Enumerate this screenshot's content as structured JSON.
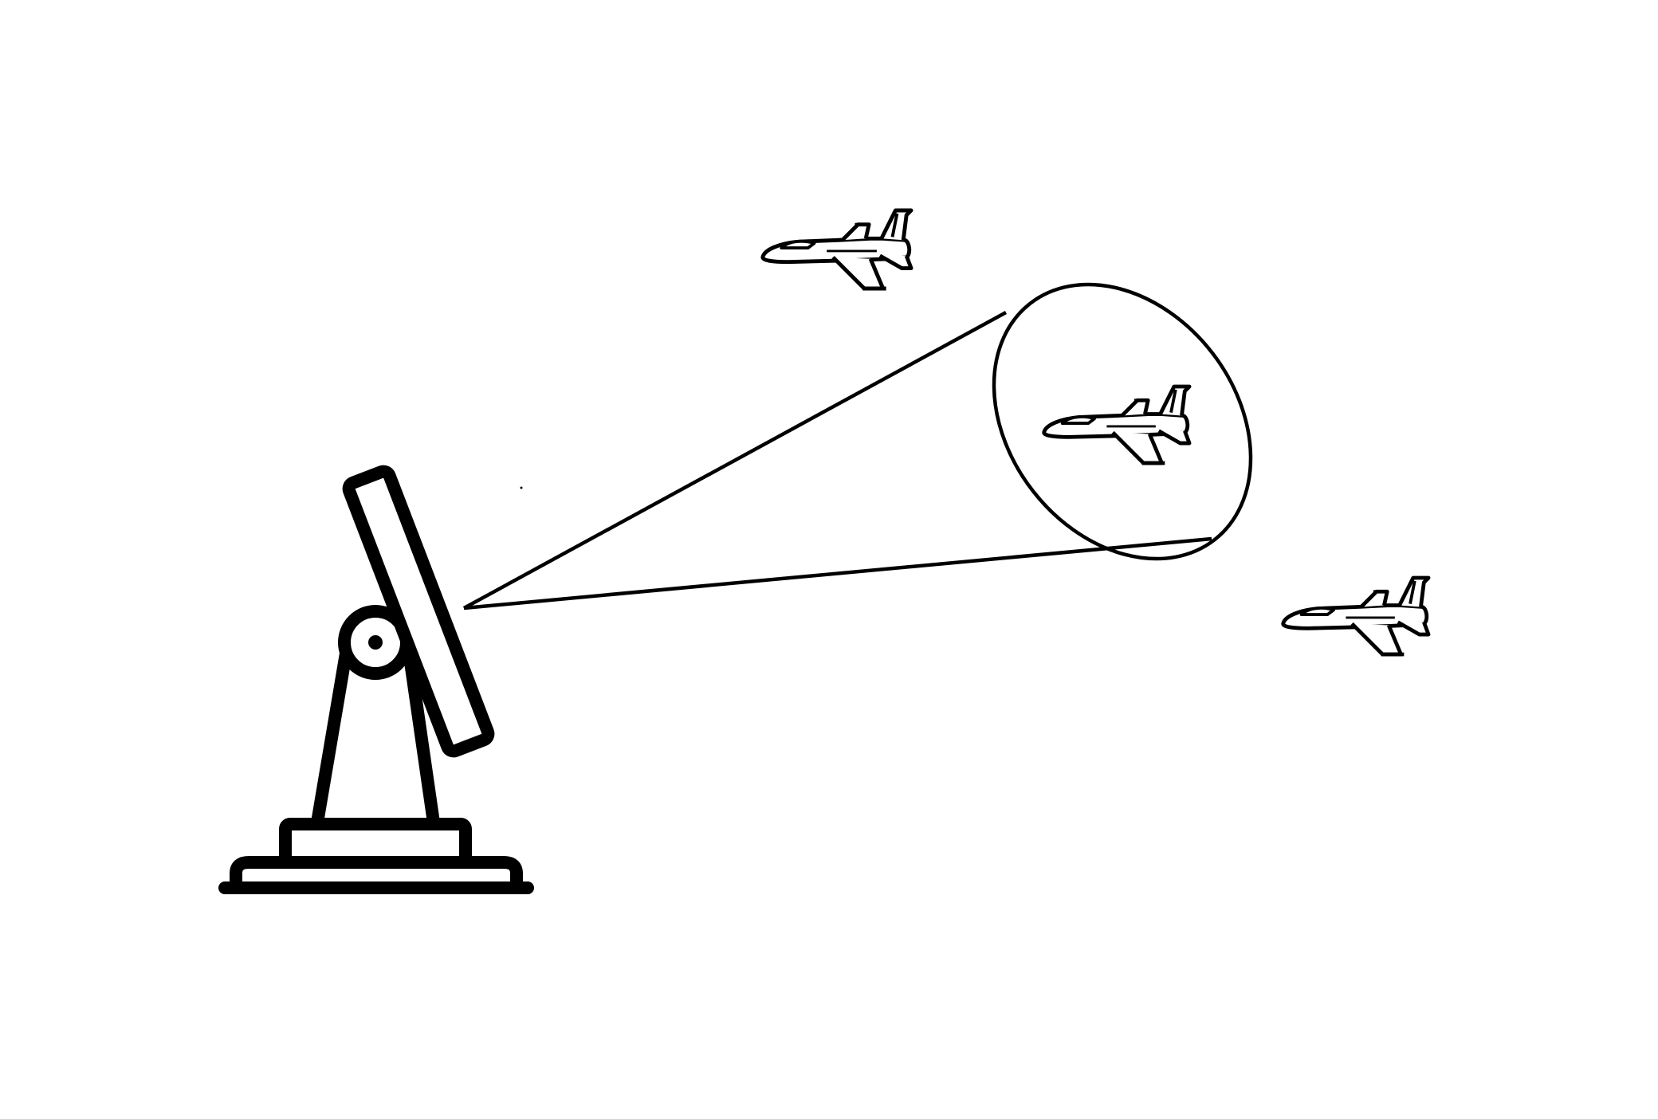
{
  "diagram": {
    "background_color": "#ffffff",
    "ink_color": "#000000",
    "objects": [
      {
        "icon": "radar-antenna-icon"
      },
      {
        "icon": "radar-beam-cone"
      },
      {
        "icon": "jet-aircraft-icon",
        "note_state": "outside-beam"
      },
      {
        "icon": "jet-aircraft-icon",
        "note_state": "inside-beam"
      },
      {
        "icon": "jet-aircraft-icon",
        "note_state": "outside-beam"
      }
    ]
  }
}
